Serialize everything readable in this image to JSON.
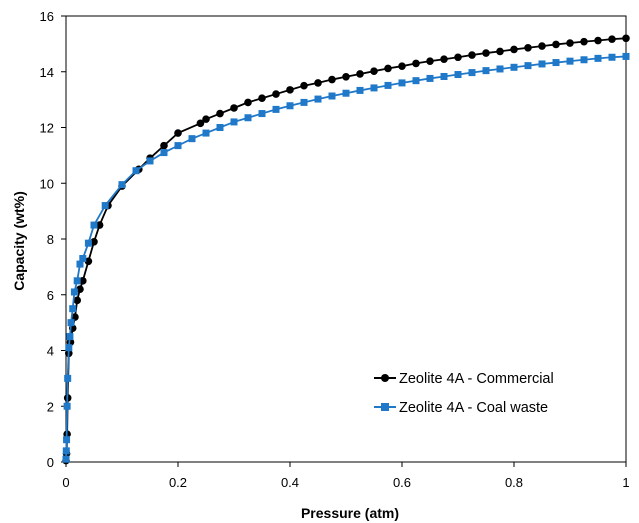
{
  "chart_data": {
    "type": "line",
    "xlabel": "Pressure (atm)",
    "ylabel": "Capacity (wt%)",
    "xlim": [
      0,
      1
    ],
    "ylim": [
      0,
      16
    ],
    "x_ticks": [
      "0",
      "0.2",
      "0.4",
      "0.6",
      "0.8",
      "1"
    ],
    "y_ticks": [
      "0",
      "2",
      "4",
      "6",
      "8",
      "10",
      "12",
      "14",
      "16"
    ],
    "grid": false,
    "legend_position": "bottom-right",
    "series": [
      {
        "name": "Zeolite 4A - Commercial",
        "color": "#000000",
        "marker": "circle",
        "x": [
          0,
          0.001,
          0.002,
          0.003,
          0.005,
          0.008,
          0.012,
          0.016,
          0.02,
          0.025,
          0.03,
          0.04,
          0.05,
          0.06,
          0.075,
          0.1,
          0.13,
          0.15,
          0.175,
          0.2,
          0.24,
          0.25,
          0.275,
          0.3,
          0.325,
          0.35,
          0.375,
          0.4,
          0.425,
          0.45,
          0.475,
          0.5,
          0.525,
          0.55,
          0.575,
          0.6,
          0.625,
          0.65,
          0.675,
          0.7,
          0.725,
          0.75,
          0.775,
          0.8,
          0.825,
          0.85,
          0.875,
          0.9,
          0.925,
          0.95,
          0.975,
          1.0
        ],
        "y": [
          0.05,
          0.3,
          1.0,
          2.3,
          3.9,
          4.3,
          4.8,
          5.2,
          5.8,
          6.2,
          6.5,
          7.2,
          7.9,
          8.5,
          9.2,
          9.9,
          10.5,
          10.9,
          11.35,
          11.8,
          12.15,
          12.3,
          12.5,
          12.7,
          12.9,
          13.05,
          13.2,
          13.35,
          13.5,
          13.6,
          13.72,
          13.82,
          13.92,
          14.02,
          14.12,
          14.2,
          14.3,
          14.38,
          14.45,
          14.52,
          14.6,
          14.67,
          14.73,
          14.8,
          14.86,
          14.92,
          14.98,
          15.03,
          15.08,
          15.12,
          15.17,
          15.2
        ]
      },
      {
        "name": "Zeolite 4A - Coal waste",
        "color": "#1f78c8",
        "marker": "square",
        "x": [
          0,
          0.0005,
          0.001,
          0.002,
          0.003,
          0.005,
          0.007,
          0.009,
          0.012,
          0.015,
          0.02,
          0.025,
          0.03,
          0.04,
          0.05,
          0.07,
          0.1,
          0.125,
          0.15,
          0.175,
          0.2,
          0.225,
          0.25,
          0.275,
          0.3,
          0.325,
          0.35,
          0.375,
          0.4,
          0.425,
          0.45,
          0.475,
          0.5,
          0.525,
          0.55,
          0.575,
          0.6,
          0.625,
          0.65,
          0.675,
          0.7,
          0.725,
          0.75,
          0.775,
          0.8,
          0.825,
          0.85,
          0.875,
          0.9,
          0.925,
          0.95,
          0.975,
          1.0
        ],
        "y": [
          0.1,
          0.4,
          0.8,
          2.0,
          3.0,
          4.1,
          4.5,
          5.0,
          5.5,
          6.1,
          6.5,
          7.1,
          7.3,
          7.85,
          8.5,
          9.2,
          9.95,
          10.45,
          10.8,
          11.1,
          11.35,
          11.6,
          11.8,
          12.0,
          12.2,
          12.35,
          12.5,
          12.65,
          12.78,
          12.9,
          13.02,
          13.13,
          13.23,
          13.33,
          13.42,
          13.51,
          13.6,
          13.68,
          13.76,
          13.83,
          13.9,
          13.97,
          14.04,
          14.1,
          14.16,
          14.22,
          14.28,
          14.33,
          14.38,
          14.43,
          14.48,
          14.52,
          14.55
        ]
      }
    ]
  }
}
